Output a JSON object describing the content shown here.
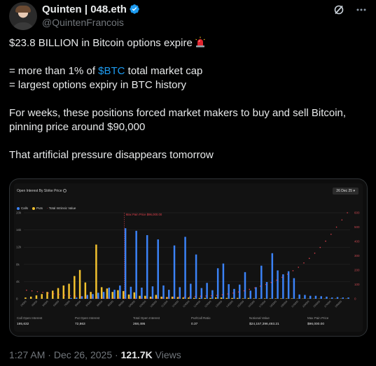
{
  "author": {
    "display_name": "Quinten | 048.eth",
    "handle": "@QuintenFrancois"
  },
  "icons": {
    "verified": "verified-badge-icon",
    "grok": "grok-icon",
    "more": "more-options-icon",
    "siren": "police-siren-emoji"
  },
  "tweet": {
    "line1": "$23.8 BILLION in Bitcoin options expire",
    "line2_prefix": "= more than 1% of ",
    "line2_cashtag": "$BTC",
    "line2_suffix": " total market cap",
    "line3": "= largest options expiry in BTC history",
    "line4": "For weeks, these positions forced market makers to buy and sell Bitcoin,",
    "line5": "pinning price around $90,000",
    "line6": "That artificial pressure disappears tomorrow"
  },
  "meta": {
    "time": "1:27 AM",
    "dot": "·",
    "date": "Dec 26, 2025",
    "views_count": "121.7K",
    "views_label": "Views"
  },
  "colors": {
    "calls": "#3b82f6",
    "puts": "#f2c12e",
    "intrinsic": "#e0424d",
    "cashtag": "#1d9bf0"
  },
  "chart_data": {
    "type": "bar",
    "title": "Open Interest By Strike Price",
    "date_selector": "26 Dec 25",
    "legend": [
      "Calls",
      "Puts",
      "Total Intrinsic Value"
    ],
    "max_pain_label": "Max Pain Price $96,000.00",
    "max_pain_strike": 96000,
    "ylim_left": [
      0,
      20000
    ],
    "yticks_left": [
      "0",
      "4k",
      "8k",
      "12k",
      "16k",
      "20k"
    ],
    "ylim_right": [
      0,
      600
    ],
    "yticks_right": [
      "0",
      "100",
      "200",
      "300",
      "400",
      "500",
      "600"
    ],
    "strikes": [
      20000,
      30000,
      40000,
      45000,
      50000,
      55000,
      60000,
      65000,
      70000,
      75000,
      80000,
      82000,
      84000,
      86000,
      88000,
      90000,
      92000,
      94000,
      96000,
      98000,
      100000,
      102000,
      104000,
      106000,
      108000,
      110000,
      112000,
      114000,
      116000,
      118000,
      120000,
      122000,
      124000,
      126000,
      128000,
      130000,
      135000,
      140000,
      145000,
      150000,
      155000,
      160000,
      165000,
      170000,
      175000,
      180000,
      185000,
      190000,
      195000,
      200000,
      210000,
      220000,
      230000,
      240000,
      250000,
      260000,
      270000,
      280000,
      290000,
      300000
    ],
    "x_tick_labels": [
      "20000",
      "40000",
      "50000",
      "60000",
      "70000",
      "80000",
      "84000",
      "88000",
      "92000",
      "96000",
      "100000",
      "104000",
      "108000",
      "112000",
      "116000",
      "120000",
      "124000",
      "128000",
      "135000",
      "145000",
      "155000",
      "165000",
      "175000",
      "185000",
      "195000",
      "210000",
      "230000",
      "250000",
      "270000",
      "290000"
    ],
    "series": [
      {
        "name": "Calls",
        "values": [
          0,
          0,
          0,
          0,
          0,
          0,
          0,
          0,
          200,
          300,
          600,
          900,
          1100,
          1400,
          1600,
          2600,
          2100,
          3100,
          16400,
          2800,
          15800,
          2600,
          14800,
          2900,
          13800,
          3100,
          2100,
          12400,
          2700,
          14400,
          3500,
          10300,
          2500,
          3700,
          2000,
          7100,
          8200,
          3400,
          2300,
          3300,
          6200,
          1900,
          2700,
          7700,
          3900,
          10600,
          6600,
          5700,
          6400,
          4800,
          1000,
          900,
          700,
          700,
          600,
          500,
          300,
          400,
          300,
          300
        ]
      },
      {
        "name": "Puts",
        "values": [
          300,
          500,
          800,
          1100,
          1600,
          1900,
          2500,
          3100,
          3500,
          5300,
          6700,
          3800,
          1600,
          12600,
          2700,
          2400,
          1600,
          2000,
          1800,
          1000,
          1500,
          700,
          700,
          500,
          900,
          500,
          400,
          500,
          400,
          300,
          300,
          200,
          200,
          200,
          200,
          300,
          300,
          200,
          200,
          200,
          100,
          200,
          100,
          100,
          100,
          100,
          100,
          100,
          100,
          100,
          50,
          50,
          50,
          50,
          50,
          50,
          50,
          50,
          50,
          50
        ]
      },
      {
        "name": "Total Intrinsic Value",
        "values": [
          60,
          55,
          50,
          45,
          40,
          35,
          30,
          26,
          22,
          18,
          14,
          12,
          10,
          8,
          6,
          5,
          4,
          3,
          2,
          2,
          2,
          3,
          3,
          4,
          5,
          6,
          7,
          9,
          10,
          12,
          14,
          16,
          18,
          20,
          22,
          24,
          28,
          34,
          40,
          48,
          56,
          66,
          76,
          88,
          100,
          114,
          130,
          150,
          172,
          196,
          220,
          250,
          282,
          318,
          358,
          402,
          450,
          500,
          550,
          600
        ]
      }
    ]
  },
  "stats": [
    {
      "label": "Call Open Interest",
      "value": "195,632"
    },
    {
      "label": "Put Open Interest",
      "value": "72,863"
    },
    {
      "label": "Total Open Interest",
      "value": "268,495"
    },
    {
      "label": "Put/Call Ratio",
      "value": "0.37"
    },
    {
      "label": "Notional Value",
      "value": "$24,157,396,493.21"
    },
    {
      "label": "Max Pain Price",
      "value": "$96,000.00"
    }
  ]
}
